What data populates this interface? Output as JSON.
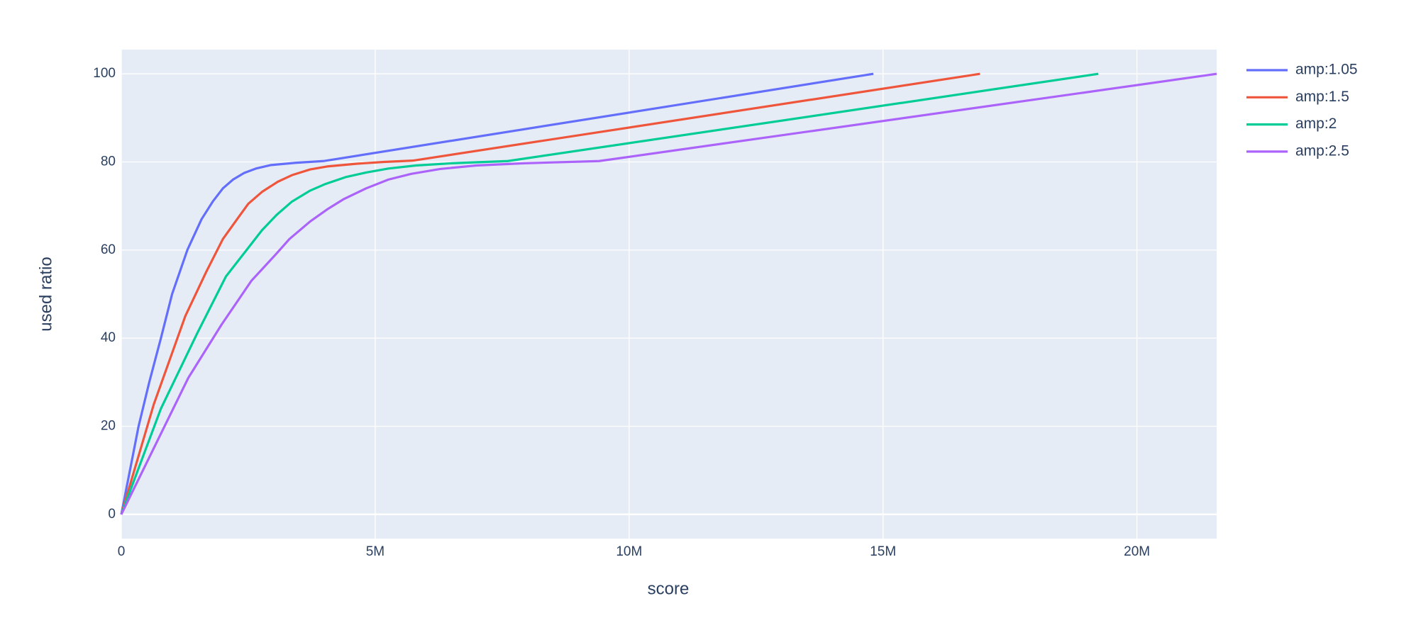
{
  "chart_data": {
    "type": "line",
    "x_label": "score",
    "y_label": "used ratio",
    "xlim": [
      0,
      21570000
    ],
    "ylim": [
      -5.5,
      105.5
    ],
    "xticks": [
      0,
      {
        "value": 5000000,
        "label": "5M"
      },
      {
        "value": 10000000,
        "label": "10M"
      },
      {
        "value": 15000000,
        "label": "15M"
      },
      {
        "value": 20000000,
        "label": "20M"
      }
    ],
    "yticks": [
      0,
      20,
      40,
      60,
      80,
      100
    ],
    "grid": true,
    "legend": "outside-top-right",
    "series": [
      {
        "name": "amp:1.05",
        "color": "#636efa",
        "x": [
          0,
          340000,
          550000,
          780000,
          1000000,
          1300000,
          1580000,
          1800000,
          2000000,
          2200000,
          2420000,
          2650000,
          2950000,
          3430000,
          3980000,
          14810000
        ],
        "values": [
          0,
          20,
          30,
          40,
          50,
          60,
          67,
          71,
          74,
          76,
          77.5,
          78.5,
          79.3,
          79.8,
          80.2,
          100
        ]
      },
      {
        "name": "amp:1.5",
        "color": "#ef553b",
        "x": [
          0,
          640000,
          1260000,
          1670000,
          2000000,
          2280000,
          2500000,
          2770000,
          3080000,
          3360000,
          3720000,
          4070000,
          4640000,
          5170000,
          5740000,
          16910000
        ],
        "values": [
          0,
          25,
          45,
          55,
          62.5,
          67,
          70.5,
          73.2,
          75.5,
          77,
          78.3,
          79,
          79.6,
          80,
          80.3,
          100
        ]
      },
      {
        "name": "amp:2",
        "color": "#00cc96",
        "x": [
          0,
          780000,
          1490000,
          2060000,
          2500000,
          2770000,
          3060000,
          3360000,
          3720000,
          4020000,
          4430000,
          4820000,
          5260000,
          5800000,
          6510000,
          7610000,
          19240000
        ],
        "values": [
          0,
          24,
          41,
          54,
          60.5,
          64.5,
          68,
          71,
          73.5,
          75,
          76.6,
          77.6,
          78.5,
          79.2,
          79.7,
          80.2,
          100
        ]
      },
      {
        "name": "amp:2.5",
        "color": "#ab63fa",
        "x": [
          0,
          1320000,
          1970000,
          2560000,
          3040000,
          3310000,
          3720000,
          4050000,
          4370000,
          4820000,
          5260000,
          5710000,
          6280000,
          6990000,
          7930000,
          9410000,
          21570000
        ],
        "values": [
          0,
          31,
          43,
          53,
          59,
          62.5,
          66.5,
          69.2,
          71.5,
          74,
          76,
          77.3,
          78.4,
          79.2,
          79.7,
          80.2,
          100
        ]
      }
    ]
  }
}
